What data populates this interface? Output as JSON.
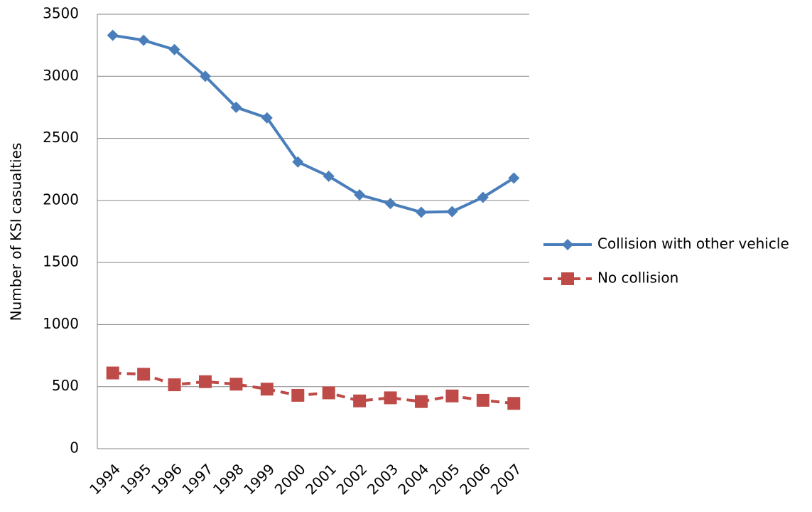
{
  "chart_data": {
    "type": "line",
    "y_label": "Number of KSI casualties",
    "categories": [
      "1994",
      "1995",
      "1996",
      "1997",
      "1998",
      "1999",
      "2000",
      "2001",
      "2002",
      "2003",
      "2004",
      "2005",
      "2006",
      "2007"
    ],
    "series": [
      {
        "name": "Collision with other vehicle",
        "color": "#4a7ebb",
        "marker": "diamond",
        "dashed": false,
        "values": [
          3330,
          3290,
          3215,
          3000,
          2750,
          2665,
          2310,
          2195,
          2045,
          1975,
          1905,
          1910,
          2025,
          2180
        ]
      },
      {
        "name": "No collision",
        "color": "#be4b48",
        "marker": "square",
        "dashed": true,
        "values": [
          610,
          600,
          515,
          540,
          520,
          480,
          430,
          450,
          385,
          410,
          380,
          425,
          390,
          365
        ]
      }
    ],
    "ylim": [
      0,
      3500
    ],
    "yticks": [
      0,
      500,
      1000,
      1500,
      2000,
      2500,
      3000,
      3500
    ],
    "grid": true,
    "legend": "right"
  }
}
